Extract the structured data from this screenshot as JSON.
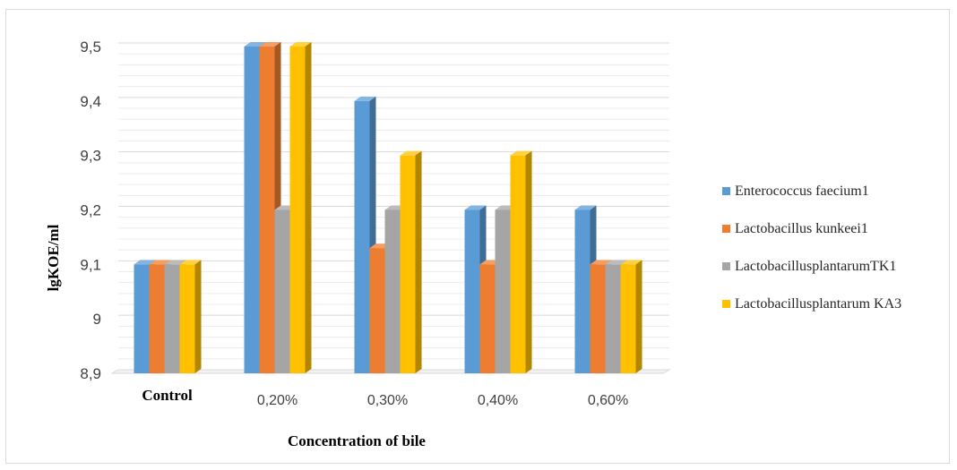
{
  "chart_data": {
    "type": "bar",
    "title": "",
    "xlabel": "Concentration of bile",
    "ylabel": "lgKOE/ml",
    "categories": [
      "Control",
      "0,20%",
      "0,30%",
      "0,40%",
      "0,60%"
    ],
    "ylim": [
      8.9,
      9.5
    ],
    "yticks": [
      "8,9",
      "9",
      "9,1",
      "9,2",
      "9,3",
      "9,4",
      "9,5"
    ],
    "grid": true,
    "legend_position": "right",
    "series": [
      {
        "name": "Enterococcus faecium1",
        "color": "#5B9BD5",
        "values": [
          9.1,
          9.5,
          9.4,
          9.2,
          9.2
        ]
      },
      {
        "name": "Lactobacillus kunkeei1",
        "color": "#ED7D31",
        "values": [
          9.1,
          9.5,
          9.13,
          9.1,
          9.1
        ]
      },
      {
        "name": "LactobacillusplantarumTK1",
        "color": "#A5A5A5",
        "values": [
          9.1,
          9.2,
          9.2,
          9.2,
          9.1
        ]
      },
      {
        "name": "Lactobacillusplantarum  KA3",
        "color": "#FFC000",
        "values": [
          9.1,
          9.5,
          9.3,
          9.3,
          9.1
        ]
      }
    ]
  }
}
